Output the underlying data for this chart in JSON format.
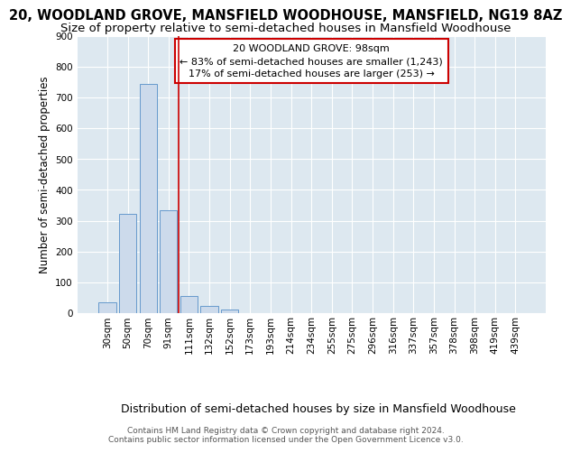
{
  "title_line1": "20, WOODLAND GROVE, MANSFIELD WOODHOUSE, MANSFIELD, NG19 8AZ",
  "title_line2": "Size of property relative to semi-detached houses in Mansfield Woodhouse",
  "xlabel_bottom": "Distribution of semi-detached houses by size in Mansfield Woodhouse",
  "ylabel": "Number of semi-detached properties",
  "footer_line1": "Contains HM Land Registry data © Crown copyright and database right 2024.",
  "footer_line2": "Contains public sector information licensed under the Open Government Licence v3.0.",
  "categories": [
    "30sqm",
    "50sqm",
    "70sqm",
    "91sqm",
    "111sqm",
    "132sqm",
    "152sqm",
    "173sqm",
    "193sqm",
    "214sqm",
    "234sqm",
    "255sqm",
    "275sqm",
    "296sqm",
    "316sqm",
    "337sqm",
    "357sqm",
    "378sqm",
    "398sqm",
    "419sqm",
    "439sqm"
  ],
  "values": [
    35,
    322,
    743,
    333,
    57,
    22,
    13,
    0,
    0,
    0,
    0,
    0,
    0,
    0,
    0,
    0,
    0,
    0,
    0,
    0,
    0
  ],
  "bar_color": "#ccdaeb",
  "bar_edge_color": "#6699cc",
  "background_color": "#dde8f0",
  "grid_color": "#ffffff",
  "annotation_text_line1": "20 WOODLAND GROVE: 98sqm",
  "annotation_text_line2": "← 83% of semi-detached houses are smaller (1,243)",
  "annotation_text_line3": "17% of semi-detached houses are larger (253) →",
  "annotation_box_facecolor": "#ffffff",
  "annotation_box_edgecolor": "#cc0000",
  "vline_color": "#cc0000",
  "vline_x": 3.5,
  "ylim": [
    0,
    900
  ],
  "yticks": [
    0,
    100,
    200,
    300,
    400,
    500,
    600,
    700,
    800,
    900
  ],
  "title_fontsize": 10.5,
  "subtitle_fontsize": 9.5,
  "ylabel_fontsize": 8.5,
  "xlabel_fontsize": 9,
  "tick_fontsize": 7.5,
  "annotation_fontsize": 8,
  "footer_fontsize": 6.5
}
